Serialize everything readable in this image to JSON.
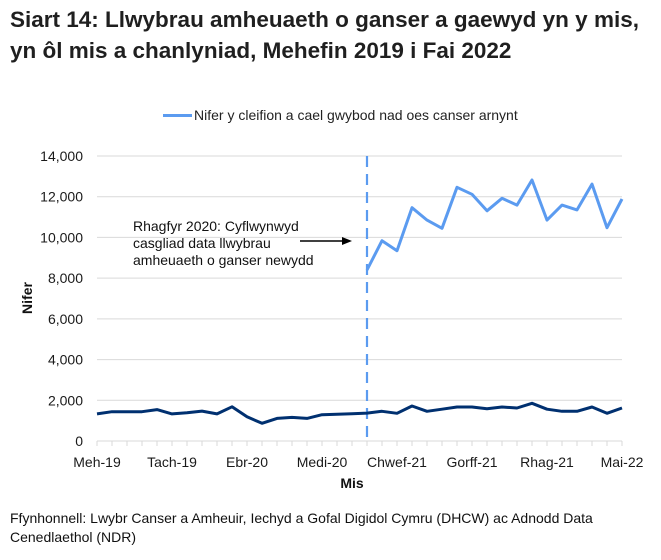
{
  "title": "Siart 14: Llwybrau amheuaeth o ganser a gaewyd yn y mis, yn ôl mis a chanlyniad, Mehefin 2019 i Fai 2022",
  "legend": {
    "entries": [
      {
        "label": "Nifer y cleifion a cael gwybod nad oes canser arnynt",
        "color": "#5b9bf0"
      }
    ]
  },
  "annotation": {
    "text": "Rhagfyr 2020: Cyflwynwyd casgliad data llwybrau amheuaeth o ganser newydd"
  },
  "source": "Ffynhonnell: Lwybr Canser a Amheuir, Iechyd a Gofal Digidol Cymru (DHCW) ac Adnodd Data Cenedlaethol (NDR)",
  "axes": {
    "ylabel": "Nifer",
    "xlabel": "Mis",
    "yticks": [
      "0",
      "2,000",
      "4,000",
      "6,000",
      "8,000",
      "10,000",
      "12,000",
      "14,000"
    ],
    "xtick_labels": [
      {
        "label": "Meh-19",
        "index": 0
      },
      {
        "label": "Tach-19",
        "index": 5
      },
      {
        "label": "Ebr-20",
        "index": 10
      },
      {
        "label": "Medi-20",
        "index": 15
      },
      {
        "label": "Chwef-21",
        "index": 20
      },
      {
        "label": "Gorff-21",
        "index": 25
      },
      {
        "label": "Rhag-21",
        "index": 30
      },
      {
        "label": "Mai-22",
        "index": 35
      }
    ]
  },
  "chart_data": {
    "type": "line",
    "title": "Siart 14: Llwybrau amheuaeth o ganser a gaewyd yn y mis, yn ôl mis a chanlyniad, Mehefin 2019 i Fai 2022",
    "xlabel": "Mis",
    "ylabel": "Nifer",
    "ylim": [
      0,
      14000
    ],
    "grid": true,
    "legend_position": "top",
    "x": [
      "Jun-19",
      "Jul-19",
      "Aug-19",
      "Sep-19",
      "Oct-19",
      "Nov-19",
      "Dec-19",
      "Jan-20",
      "Feb-20",
      "Mar-20",
      "Apr-20",
      "May-20",
      "Jun-20",
      "Jul-20",
      "Aug-20",
      "Sep-20",
      "Oct-20",
      "Nov-20",
      "Dec-20",
      "Jan-21",
      "Feb-21",
      "Mar-21",
      "Apr-21",
      "May-21",
      "Jun-21",
      "Jul-21",
      "Aug-21",
      "Sep-21",
      "Oct-21",
      "Nov-21",
      "Dec-21",
      "Jan-22",
      "Feb-22",
      "Mar-22",
      "Apr-22",
      "May-22"
    ],
    "series": [
      {
        "name": "Nifer y cleifion a cael gwybod nad oes canser arnynt",
        "color": "#5b9bf0",
        "in_legend": true,
        "values": [
          null,
          null,
          null,
          null,
          null,
          null,
          null,
          null,
          null,
          null,
          null,
          null,
          null,
          null,
          null,
          null,
          null,
          null,
          8400,
          9840,
          9350,
          11460,
          10850,
          10450,
          12460,
          12120,
          11310,
          11920,
          11590,
          12820,
          10850,
          11590,
          11350,
          12620,
          10480,
          11890
        ]
      },
      {
        "name": "(unlabelled dark series)",
        "color": "#003070",
        "in_legend": false,
        "values": [
          1330,
          1440,
          1440,
          1440,
          1540,
          1330,
          1390,
          1470,
          1330,
          1680,
          1190,
          870,
          1110,
          1160,
          1110,
          1290,
          1310,
          1340,
          1370,
          1460,
          1360,
          1720,
          1460,
          1560,
          1670,
          1670,
          1580,
          1670,
          1620,
          1850,
          1560,
          1460,
          1460,
          1670,
          1360,
          1620
        ]
      }
    ],
    "annotations": [
      {
        "text": "Rhagfyr 2020: Cyflwynwyd casgliad data llwybrau amheuaeth o ganser newydd",
        "x": "Dec-20",
        "type": "vertical-dashed-line-with-arrow"
      }
    ]
  }
}
